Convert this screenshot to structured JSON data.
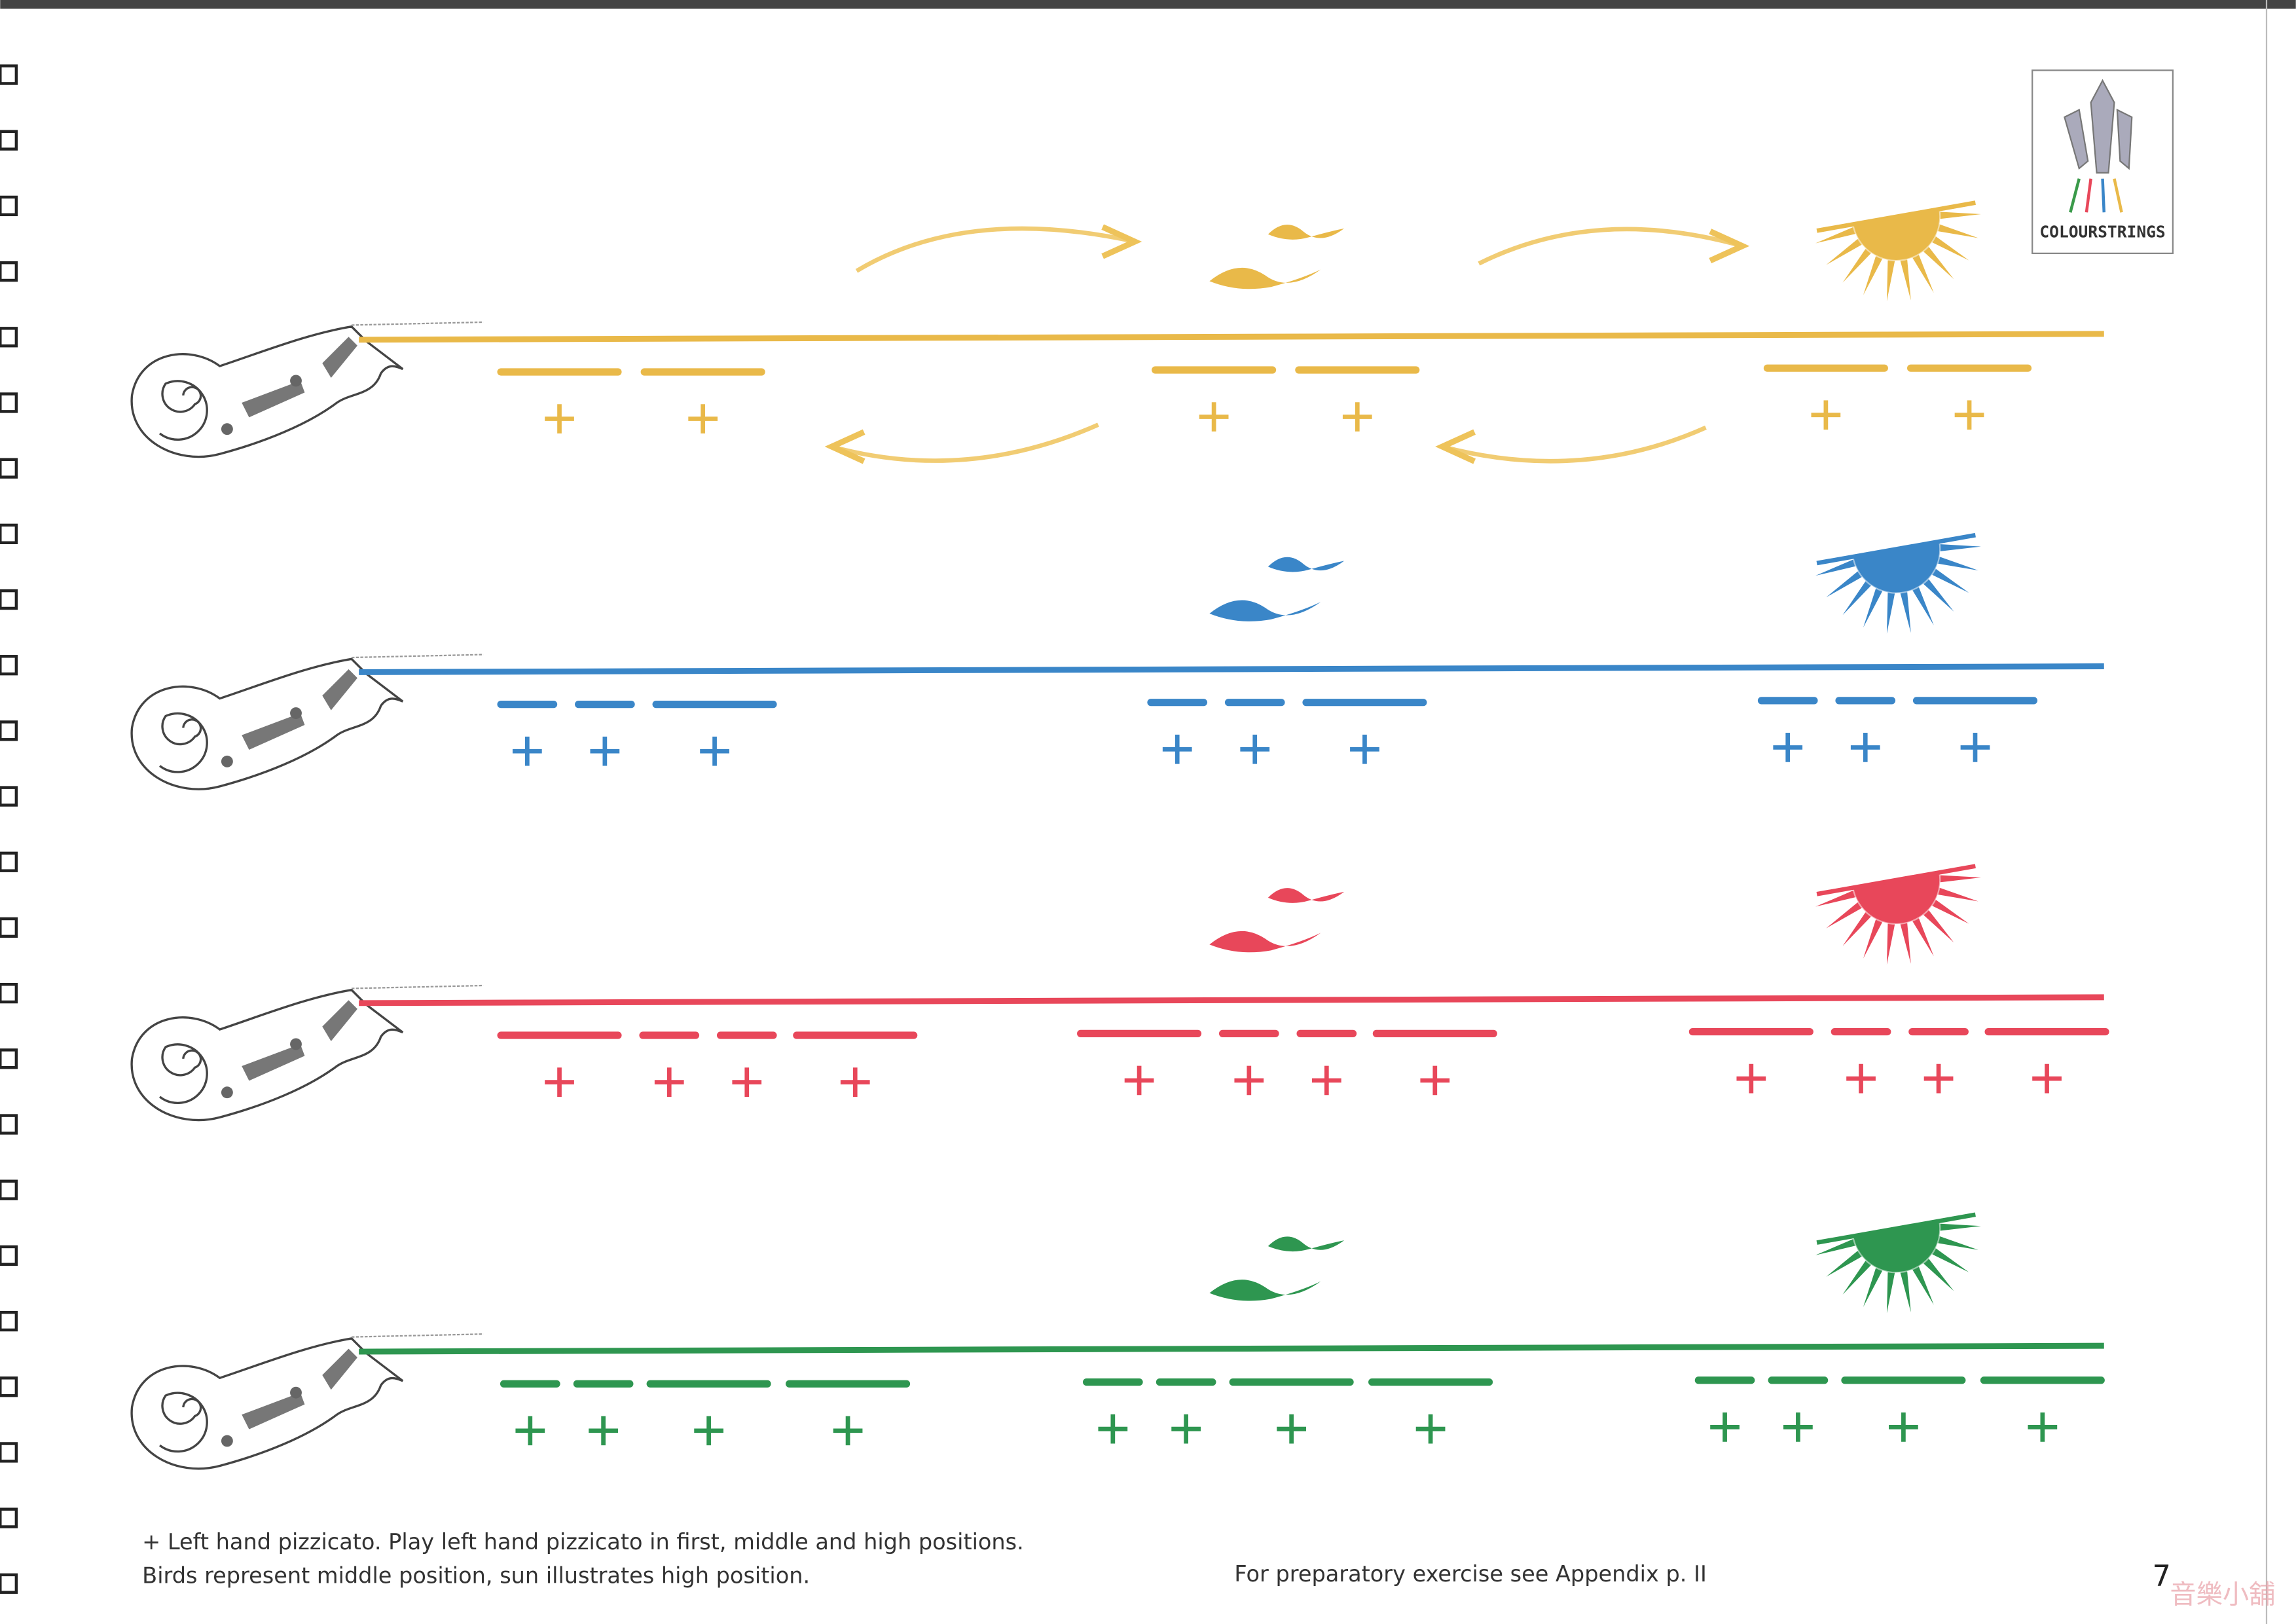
{
  "logo": {
    "text": "COLOURSTRINGS"
  },
  "footer": {
    "note": [
      "+ Left hand pizzicato. Play left hand pizzicato in first, middle and high positions.",
      "Birds represent middle position, sun illustrates high position."
    ],
    "reference": "For preparatory exercise see Appendix p. II",
    "page_number": "7"
  },
  "watermark": "音樂小舖"
}
